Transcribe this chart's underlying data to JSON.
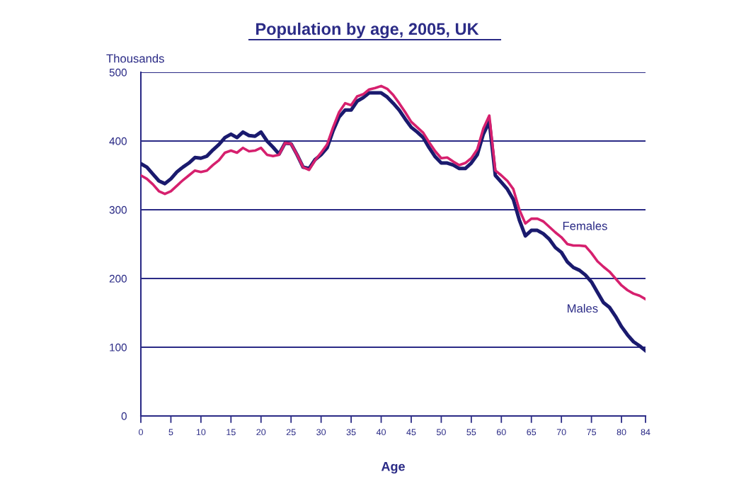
{
  "chart_data": {
    "type": "line",
    "title": "Population by age, 2005, UK",
    "xlabel": "Age",
    "ylabel": "Thousands",
    "x": [
      0,
      1,
      2,
      3,
      4,
      5,
      6,
      7,
      8,
      9,
      10,
      11,
      12,
      13,
      14,
      15,
      16,
      17,
      18,
      19,
      20,
      21,
      22,
      23,
      24,
      25,
      26,
      27,
      28,
      29,
      30,
      31,
      32,
      33,
      34,
      35,
      36,
      37,
      38,
      39,
      40,
      41,
      42,
      43,
      44,
      45,
      46,
      47,
      48,
      49,
      50,
      51,
      52,
      53,
      54,
      55,
      56,
      57,
      58,
      59,
      60,
      61,
      62,
      63,
      64,
      65,
      66,
      67,
      68,
      69,
      70,
      71,
      72,
      73,
      74,
      75,
      76,
      77,
      78,
      79,
      80,
      81,
      82,
      83,
      84
    ],
    "series": [
      {
        "name": "Females",
        "color": "#d6206e",
        "values": [
          350,
          345,
          337,
          327,
          323,
          327,
          335,
          343,
          350,
          357,
          355,
          357,
          365,
          372,
          383,
          386,
          383,
          390,
          385,
          386,
          390,
          380,
          378,
          380,
          397,
          396,
          380,
          362,
          358,
          372,
          383,
          395,
          420,
          442,
          455,
          452,
          465,
          468,
          475,
          477,
          480,
          476,
          467,
          455,
          442,
          428,
          420,
          412,
          398,
          385,
          375,
          376,
          370,
          365,
          368,
          375,
          388,
          418,
          437,
          357,
          350,
          342,
          330,
          300,
          280,
          287,
          287,
          283,
          275,
          267,
          260,
          250,
          248,
          248,
          247,
          237,
          225,
          217,
          210,
          200,
          190,
          183,
          178,
          175,
          170
        ]
      },
      {
        "name": "Males",
        "color": "#1a1a6e",
        "values": [
          367,
          362,
          352,
          342,
          338,
          345,
          355,
          362,
          368,
          376,
          375,
          378,
          387,
          395,
          405,
          410,
          405,
          413,
          408,
          407,
          413,
          400,
          391,
          381,
          397,
          396,
          380,
          362,
          360,
          373,
          380,
          390,
          415,
          435,
          445,
          445,
          458,
          463,
          470,
          470,
          470,
          464,
          455,
          445,
          432,
          420,
          413,
          405,
          390,
          377,
          368,
          368,
          365,
          360,
          360,
          368,
          380,
          410,
          428,
          350,
          340,
          330,
          315,
          285,
          262,
          270,
          270,
          265,
          257,
          245,
          238,
          224,
          216,
          212,
          205,
          195,
          180,
          165,
          158,
          145,
          130,
          118,
          108,
          102,
          95
        ]
      }
    ],
    "xlim": [
      0,
      84
    ],
    "xticks": [
      0,
      5,
      10,
      15,
      20,
      25,
      30,
      35,
      40,
      45,
      50,
      55,
      60,
      65,
      70,
      75,
      80,
      84
    ],
    "ylim": [
      0,
      500
    ],
    "yticks": [
      0,
      100,
      200,
      300,
      400,
      500
    ],
    "grid": "y",
    "marker": "none",
    "line_style": "solid"
  }
}
